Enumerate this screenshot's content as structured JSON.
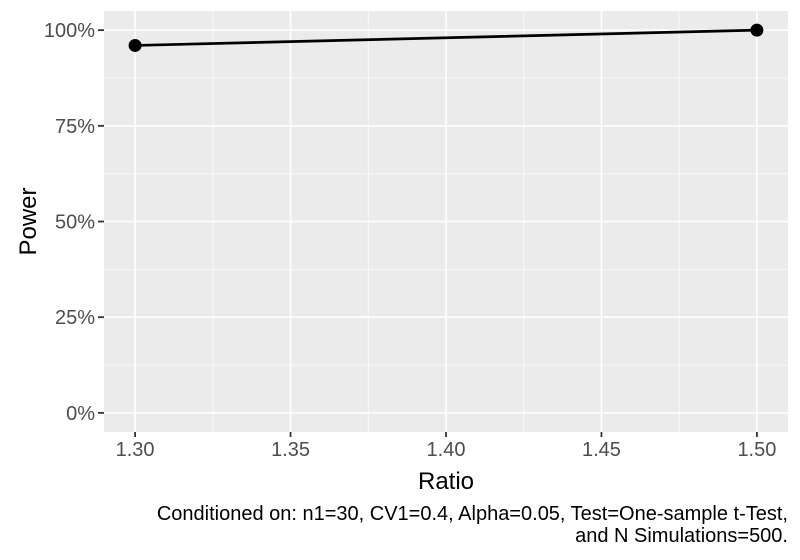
{
  "figure": {
    "background": "#FFFFFF"
  },
  "caption": {
    "lines": [
      "Conditioned on: n1=30, CV1=0.4, Alpha=0.05, Test=One-sample t-Test,",
      "and N Simulations=500."
    ],
    "align": "right"
  },
  "chart_data": {
    "type": "line",
    "title": "",
    "xlabel": "Ratio",
    "ylabel": "Power",
    "x": [
      1.3,
      1.5
    ],
    "series": [
      {
        "name": "Power",
        "values": [
          96,
          100
        ]
      }
    ],
    "x_ticks": [
      1.3,
      1.35,
      1.4,
      1.45,
      1.5
    ],
    "x_tick_labels": [
      "1.30",
      "1.35",
      "1.40",
      "1.45",
      "1.50"
    ],
    "x_minor_ticks": [
      1.325,
      1.375,
      1.425,
      1.475
    ],
    "xlim": [
      1.29,
      1.51
    ],
    "y_ticks": [
      0,
      25,
      50,
      75,
      100
    ],
    "y_tick_labels": [
      "0%",
      "25%",
      "50%",
      "75%",
      "100%"
    ],
    "y_minor_ticks": [
      12.5,
      37.5,
      62.5,
      87.5
    ],
    "ylim": [
      -5,
      105
    ],
    "grid": true,
    "legend": "none",
    "style": {
      "panel_bg": "#EBEBEB",
      "grid_major_color": "#FFFFFF",
      "grid_minor_color": "#FFFFFF",
      "grid_major_width": 1.6,
      "grid_minor_width": 0.9,
      "tick_label_color": "#4D4D4D",
      "axis_title_color": "#000000",
      "tick_mark_color": "#333333",
      "line_color": "#000000",
      "point_color": "#000000",
      "line_width": 2.7,
      "point_radius": 6.5,
      "tick_label_size": 20,
      "axis_title_size": 24
    }
  }
}
